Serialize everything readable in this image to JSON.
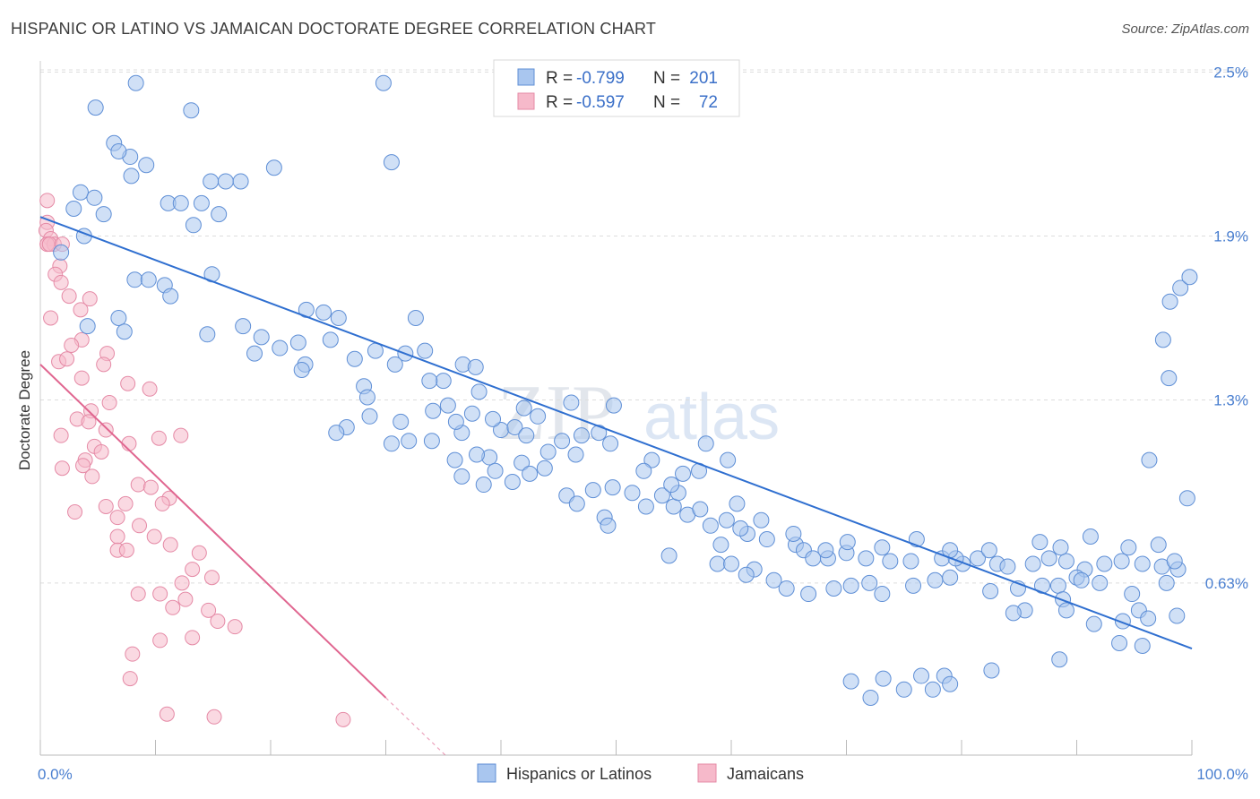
{
  "title": "HISPANIC OR LATINO VS JAMAICAN DOCTORATE DEGREE CORRELATION CHART",
  "source": "Source: ZipAtlas.com",
  "watermark": {
    "zip": "ZIP",
    "atlas": "atlas"
  },
  "colors": {
    "blue_fill": "#a9c6ef",
    "blue_stroke": "#5f8fd6",
    "blue_line": "#2f6fd0",
    "pink_fill": "#f6b9ca",
    "pink_stroke": "#e58aa6",
    "pink_line": "#e06690",
    "grid": "#dddddd",
    "tick_text": "#4a7fd0"
  },
  "chart_data": {
    "type": "scatter",
    "title": "HISPANIC OR LATINO VS JAMAICAN DOCTORATE DEGREE CORRELATION CHART",
    "xlabel": "",
    "ylabel": "Doctorate Degree",
    "xlim": [
      0,
      100
    ],
    "ylim": [
      0,
      2.6
    ],
    "x_tick_labels": [
      "0.0%",
      "100.0%"
    ],
    "y_ticks": [
      0.63,
      1.3,
      1.9,
      2.5
    ],
    "y_tick_labels": [
      "0.63%",
      "1.3%",
      "1.9%",
      "2.5%"
    ],
    "grid": true,
    "legend_position": "top-center",
    "legend": [
      {
        "name": "Hispanics or Latinos",
        "R": "-0.799",
        "N": "201"
      },
      {
        "name": "Jamaicans",
        "R": "-0.597",
        "N": "72"
      }
    ],
    "legend_labels": {
      "r": "R =",
      "n": "N ="
    },
    "series": [
      {
        "name": "Hispanics or Latinos",
        "color": "#a9c6ef",
        "trend": {
          "x0": 0.0,
          "y0": 1.97,
          "x1": 100.0,
          "y1": 0.39
        },
        "points": [
          [
            8.3,
            2.46
          ],
          [
            29.8,
            2.46
          ],
          [
            4.8,
            2.37
          ],
          [
            13.1,
            2.36
          ],
          [
            6.4,
            2.24
          ],
          [
            7.8,
            2.19
          ],
          [
            6.8,
            2.21
          ],
          [
            9.2,
            2.16
          ],
          [
            20.3,
            2.15
          ],
          [
            7.9,
            2.12
          ],
          [
            14.8,
            2.1
          ],
          [
            16.1,
            2.1
          ],
          [
            17.4,
            2.1
          ],
          [
            3.5,
            2.06
          ],
          [
            4.7,
            2.04
          ],
          [
            11.1,
            2.02
          ],
          [
            12.2,
            2.02
          ],
          [
            14.0,
            2.02
          ],
          [
            5.5,
            1.98
          ],
          [
            15.5,
            1.98
          ],
          [
            2.9,
            2.0
          ],
          [
            13.3,
            1.94
          ],
          [
            3.8,
            1.9
          ],
          [
            1.8,
            1.84
          ],
          [
            30.5,
            2.17
          ],
          [
            14.9,
            1.76
          ],
          [
            10.8,
            1.72
          ],
          [
            8.2,
            1.74
          ],
          [
            9.4,
            1.74
          ],
          [
            11.3,
            1.68
          ],
          [
            6.8,
            1.6
          ],
          [
            4.1,
            1.57
          ],
          [
            7.3,
            1.55
          ],
          [
            14.5,
            1.54
          ],
          [
            17.6,
            1.57
          ],
          [
            19.2,
            1.53
          ],
          [
            23.1,
            1.63
          ],
          [
            24.6,
            1.62
          ],
          [
            25.2,
            1.52
          ],
          [
            25.9,
            1.6
          ],
          [
            32.6,
            1.6
          ],
          [
            33.4,
            1.48
          ],
          [
            36.7,
            1.43
          ],
          [
            22.4,
            1.51
          ],
          [
            18.6,
            1.47
          ],
          [
            20.8,
            1.49
          ],
          [
            23.0,
            1.43
          ],
          [
            22.7,
            1.41
          ],
          [
            29.1,
            1.48
          ],
          [
            31.7,
            1.47
          ],
          [
            27.3,
            1.45
          ],
          [
            30.8,
            1.43
          ],
          [
            28.1,
            1.35
          ],
          [
            28.4,
            1.31
          ],
          [
            35.0,
            1.37
          ],
          [
            37.8,
            1.42
          ],
          [
            33.8,
            1.37
          ],
          [
            38.1,
            1.33
          ],
          [
            37.5,
            1.25
          ],
          [
            40.0,
            1.19
          ],
          [
            41.2,
            1.2
          ],
          [
            34.1,
            1.26
          ],
          [
            36.6,
            1.18
          ],
          [
            39.0,
            1.09
          ],
          [
            36.0,
            1.08
          ],
          [
            42.2,
            1.17
          ],
          [
            45.3,
            1.15
          ],
          [
            47.0,
            1.17
          ],
          [
            49.5,
            1.14
          ],
          [
            46.5,
            1.1
          ],
          [
            44.1,
            1.11
          ],
          [
            41.8,
            1.07
          ],
          [
            43.8,
            1.05
          ],
          [
            39.5,
            1.04
          ],
          [
            41.0,
            1.0
          ],
          [
            45.7,
            0.95
          ],
          [
            46.6,
            0.92
          ],
          [
            48.0,
            0.97
          ],
          [
            49.7,
            0.98
          ],
          [
            49.0,
            0.87
          ],
          [
            49.3,
            0.84
          ],
          [
            51.4,
            0.96
          ],
          [
            52.6,
            0.91
          ],
          [
            54.0,
            0.95
          ],
          [
            55.0,
            0.91
          ],
          [
            55.4,
            0.96
          ],
          [
            56.2,
            0.88
          ],
          [
            57.3,
            0.9
          ],
          [
            58.2,
            0.84
          ],
          [
            59.6,
            0.86
          ],
          [
            61.4,
            0.81
          ],
          [
            63.1,
            0.79
          ],
          [
            65.6,
            0.77
          ],
          [
            66.3,
            0.75
          ],
          [
            67.1,
            0.72
          ],
          [
            68.4,
            0.72
          ],
          [
            70.0,
            0.74
          ],
          [
            71.7,
            0.72
          ],
          [
            73.8,
            0.71
          ],
          [
            75.6,
            0.71
          ],
          [
            78.3,
            0.72
          ],
          [
            80.1,
            0.7
          ],
          [
            81.4,
            0.72
          ],
          [
            83.1,
            0.7
          ],
          [
            84.0,
            0.69
          ],
          [
            86.2,
            0.7
          ],
          [
            87.6,
            0.72
          ],
          [
            89.1,
            0.71
          ],
          [
            90.7,
            0.68
          ],
          [
            92.4,
            0.7
          ],
          [
            93.9,
            0.71
          ],
          [
            95.7,
            0.7
          ],
          [
            97.4,
            0.69
          ],
          [
            98.8,
            0.68
          ],
          [
            57.8,
            1.14
          ],
          [
            59.7,
            1.08
          ],
          [
            57.2,
            1.04
          ],
          [
            54.8,
            0.99
          ],
          [
            53.1,
            1.08
          ],
          [
            55.8,
            1.03
          ],
          [
            52.4,
            1.04
          ],
          [
            48.5,
            1.18
          ],
          [
            43.2,
            1.24
          ],
          [
            42.0,
            1.27
          ],
          [
            39.3,
            1.23
          ],
          [
            36.1,
            1.22
          ],
          [
            34.0,
            1.15
          ],
          [
            32.0,
            1.15
          ],
          [
            30.5,
            1.14
          ],
          [
            26.6,
            1.2
          ],
          [
            25.7,
            1.18
          ],
          [
            28.6,
            1.24
          ],
          [
            31.3,
            1.22
          ],
          [
            35.4,
            1.28
          ],
          [
            37.9,
            1.1
          ],
          [
            42.5,
            1.03
          ],
          [
            38.5,
            0.99
          ],
          [
            36.6,
            1.02
          ],
          [
            46.1,
            1.29
          ],
          [
            49.8,
            1.28
          ],
          [
            54.6,
            0.73
          ],
          [
            60.5,
            0.92
          ],
          [
            62.6,
            0.86
          ],
          [
            65.4,
            0.81
          ],
          [
            60.8,
            0.83
          ],
          [
            59.1,
            0.77
          ],
          [
            62.0,
            0.68
          ],
          [
            68.2,
            0.75
          ],
          [
            70.1,
            0.78
          ],
          [
            73.1,
            0.76
          ],
          [
            76.1,
            0.79
          ],
          [
            79.5,
            0.72
          ],
          [
            79.0,
            0.75
          ],
          [
            82.4,
            0.75
          ],
          [
            86.8,
            0.78
          ],
          [
            88.6,
            0.76
          ],
          [
            91.2,
            0.8
          ],
          [
            94.5,
            0.76
          ],
          [
            97.1,
            0.77
          ],
          [
            98.5,
            0.71
          ],
          [
            58.8,
            0.7
          ],
          [
            60.0,
            0.7
          ],
          [
            61.3,
            0.66
          ],
          [
            63.7,
            0.64
          ],
          [
            64.8,
            0.61
          ],
          [
            66.7,
            0.59
          ],
          [
            68.9,
            0.61
          ],
          [
            70.4,
            0.62
          ],
          [
            72.0,
            0.63
          ],
          [
            73.1,
            0.59
          ],
          [
            75.8,
            0.62
          ],
          [
            77.7,
            0.64
          ],
          [
            79.0,
            0.65
          ],
          [
            82.5,
            0.6
          ],
          [
            84.9,
            0.61
          ],
          [
            87.0,
            0.62
          ],
          [
            88.4,
            0.62
          ],
          [
            90.0,
            0.65
          ],
          [
            92.0,
            0.63
          ],
          [
            94.8,
            0.59
          ],
          [
            97.8,
            0.63
          ],
          [
            96.3,
            1.08
          ],
          [
            88.8,
            0.57
          ],
          [
            90.4,
            0.64
          ],
          [
            85.5,
            0.53
          ],
          [
            84.5,
            0.52
          ],
          [
            89.1,
            0.53
          ],
          [
            94.0,
            0.49
          ],
          [
            91.5,
            0.48
          ],
          [
            95.4,
            0.53
          ],
          [
            96.2,
            0.5
          ],
          [
            98.7,
            0.51
          ],
          [
            93.7,
            0.41
          ],
          [
            95.7,
            0.4
          ],
          [
            88.5,
            0.35
          ],
          [
            82.6,
            0.31
          ],
          [
            78.5,
            0.29
          ],
          [
            76.5,
            0.29
          ],
          [
            79.0,
            0.26
          ],
          [
            77.5,
            0.24
          ],
          [
            73.2,
            0.28
          ],
          [
            75.0,
            0.24
          ],
          [
            70.4,
            0.27
          ],
          [
            72.1,
            0.21
          ],
          [
            99.0,
            1.71
          ],
          [
            98.1,
            1.66
          ],
          [
            97.5,
            1.52
          ],
          [
            98.0,
            1.38
          ],
          [
            99.6,
            0.94
          ],
          [
            99.8,
            1.75
          ]
        ]
      },
      {
        "name": "Jamaicans",
        "color": "#f6b9ca",
        "trend": {
          "x0": 0.0,
          "y0": 1.43,
          "x1": 30.0,
          "y1": 0.21
        },
        "points": [
          [
            0.6,
            2.03
          ],
          [
            0.6,
            1.95
          ],
          [
            0.5,
            1.92
          ],
          [
            0.9,
            1.89
          ],
          [
            0.6,
            1.87
          ],
          [
            1.2,
            1.87
          ],
          [
            0.6,
            1.87
          ],
          [
            0.8,
            1.87
          ],
          [
            1.9,
            1.87
          ],
          [
            1.7,
            1.79
          ],
          [
            1.3,
            1.76
          ],
          [
            1.8,
            1.73
          ],
          [
            2.5,
            1.68
          ],
          [
            4.3,
            1.67
          ],
          [
            3.5,
            1.63
          ],
          [
            0.9,
            1.6
          ],
          [
            3.6,
            1.52
          ],
          [
            2.7,
            1.5
          ],
          [
            5.8,
            1.47
          ],
          [
            5.5,
            1.43
          ],
          [
            1.6,
            1.44
          ],
          [
            2.3,
            1.45
          ],
          [
            3.6,
            1.38
          ],
          [
            7.6,
            1.36
          ],
          [
            9.5,
            1.34
          ],
          [
            6.0,
            1.29
          ],
          [
            4.4,
            1.26
          ],
          [
            3.2,
            1.23
          ],
          [
            4.2,
            1.22
          ],
          [
            5.7,
            1.19
          ],
          [
            1.8,
            1.17
          ],
          [
            10.3,
            1.16
          ],
          [
            12.2,
            1.17
          ],
          [
            7.7,
            1.14
          ],
          [
            4.7,
            1.13
          ],
          [
            5.3,
            1.11
          ],
          [
            3.9,
            1.08
          ],
          [
            3.7,
            1.06
          ],
          [
            1.9,
            1.05
          ],
          [
            4.5,
            1.02
          ],
          [
            8.5,
            0.99
          ],
          [
            9.6,
            0.98
          ],
          [
            11.2,
            0.94
          ],
          [
            10.6,
            0.92
          ],
          [
            7.4,
            0.92
          ],
          [
            5.7,
            0.91
          ],
          [
            3.0,
            0.89
          ],
          [
            6.7,
            0.87
          ],
          [
            8.6,
            0.84
          ],
          [
            6.7,
            0.8
          ],
          [
            9.9,
            0.8
          ],
          [
            11.3,
            0.77
          ],
          [
            6.7,
            0.75
          ],
          [
            7.5,
            0.75
          ],
          [
            13.8,
            0.74
          ],
          [
            13.2,
            0.68
          ],
          [
            14.9,
            0.65
          ],
          [
            12.3,
            0.63
          ],
          [
            8.5,
            0.59
          ],
          [
            10.4,
            0.59
          ],
          [
            12.6,
            0.57
          ],
          [
            11.5,
            0.54
          ],
          [
            14.6,
            0.53
          ],
          [
            15.4,
            0.49
          ],
          [
            16.9,
            0.47
          ],
          [
            13.2,
            0.43
          ],
          [
            10.4,
            0.42
          ],
          [
            8.0,
            0.37
          ],
          [
            7.8,
            0.28
          ],
          [
            11.0,
            0.15
          ],
          [
            15.1,
            0.14
          ],
          [
            26.3,
            0.13
          ]
        ]
      }
    ]
  }
}
